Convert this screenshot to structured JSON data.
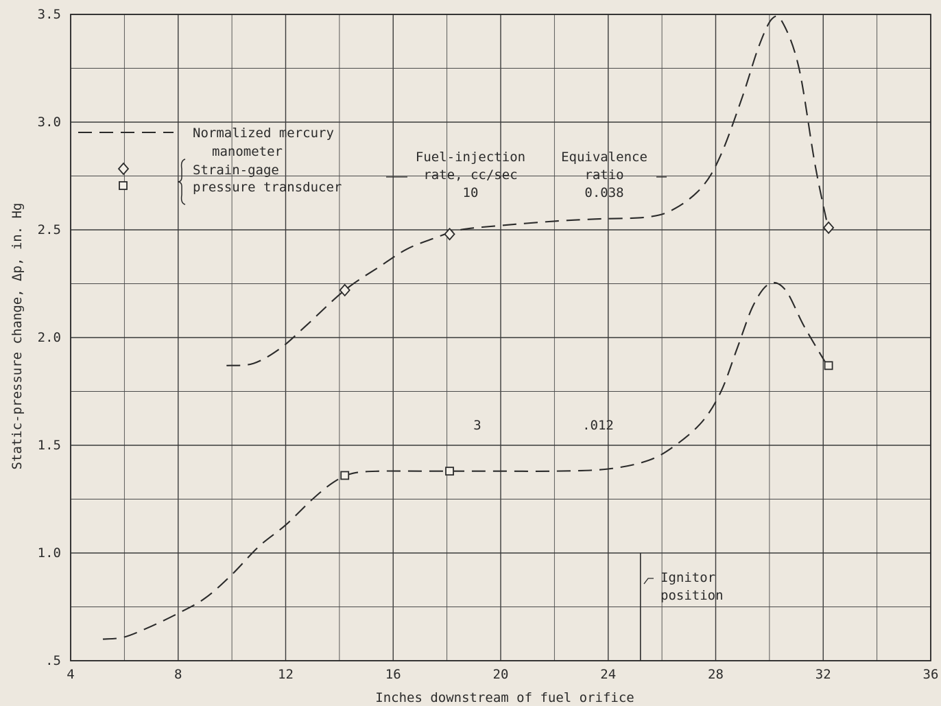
{
  "chart_data": {
    "type": "line",
    "xlabel": "Inches downstream of fuel orifice",
    "ylabel": "Static-pressure change, Δp, in. Hg",
    "xlim": [
      4,
      36
    ],
    "ylim": [
      0.5,
      3.5
    ],
    "x_ticks": [
      {
        "value": 4,
        "label": "4"
      },
      {
        "value": 8,
        "label": "8"
      },
      {
        "value": 12,
        "label": "12"
      },
      {
        "value": 16,
        "label": "16"
      },
      {
        "value": 20,
        "label": "20"
      },
      {
        "value": 24,
        "label": "24"
      },
      {
        "value": 28,
        "label": "28"
      },
      {
        "value": 32,
        "label": "32"
      },
      {
        "value": 36,
        "label": "36"
      }
    ],
    "y_ticks": [
      {
        "value": 0.5,
        "label": ".5"
      },
      {
        "value": 1.0,
        "label": "1.0"
      },
      {
        "value": 1.5,
        "label": "1.5"
      },
      {
        "value": 2.0,
        "label": "2.0"
      },
      {
        "value": 2.5,
        "label": "2.5"
      },
      {
        "value": 3.0,
        "label": "3.0"
      },
      {
        "value": 3.5,
        "label": "3.5"
      }
    ],
    "grid": true,
    "legend": {
      "line_entry": [
        "Normalized mercury",
        "manometer"
      ],
      "marker_entry": [
        "Strain-gage",
        "pressure transducer"
      ]
    },
    "column_headers": {
      "rate": [
        "Fuel-injection",
        "rate, cc/sec"
      ],
      "ratio": [
        "Equivalence",
        "ratio"
      ]
    },
    "series": [
      {
        "rate": "10",
        "equivalence_ratio": "0.038",
        "curve": [
          [
            9.8,
            1.87
          ],
          [
            10.8,
            1.88
          ],
          [
            11.8,
            1.95
          ],
          [
            12.8,
            2.06
          ],
          [
            14.2,
            2.22
          ],
          [
            15.5,
            2.33
          ],
          [
            16.5,
            2.41
          ],
          [
            17.5,
            2.46
          ],
          [
            18.5,
            2.5
          ],
          [
            20,
            2.52
          ],
          [
            22,
            2.54
          ],
          [
            23.5,
            2.55
          ],
          [
            25.5,
            2.56
          ],
          [
            26.5,
            2.6
          ],
          [
            27.5,
            2.7
          ],
          [
            28.2,
            2.85
          ],
          [
            29,
            3.12
          ],
          [
            29.6,
            3.35
          ],
          [
            30.1,
            3.48
          ],
          [
            30.5,
            3.46
          ],
          [
            31.1,
            3.25
          ],
          [
            31.7,
            2.8
          ],
          [
            32.2,
            2.5
          ]
        ],
        "transducer_points": [
          [
            14.2,
            2.22
          ],
          [
            18.1,
            2.48
          ],
          [
            32.2,
            2.51
          ]
        ]
      },
      {
        "rate": "3",
        "equivalence_ratio": ".012",
        "curve": [
          [
            5.2,
            0.6
          ],
          [
            6,
            0.61
          ],
          [
            7,
            0.66
          ],
          [
            8,
            0.72
          ],
          [
            9,
            0.79
          ],
          [
            10,
            0.9
          ],
          [
            11,
            1.03
          ],
          [
            12,
            1.13
          ],
          [
            13,
            1.25
          ],
          [
            13.8,
            1.33
          ],
          [
            14.5,
            1.37
          ],
          [
            15.5,
            1.38
          ],
          [
            17,
            1.38
          ],
          [
            18.5,
            1.38
          ],
          [
            20,
            1.38
          ],
          [
            22,
            1.38
          ],
          [
            24,
            1.39
          ],
          [
            25.5,
            1.43
          ],
          [
            26.5,
            1.5
          ],
          [
            27.5,
            1.61
          ],
          [
            28.2,
            1.75
          ],
          [
            28.8,
            1.95
          ],
          [
            29.4,
            2.15
          ],
          [
            30,
            2.25
          ],
          [
            30.6,
            2.22
          ],
          [
            31.3,
            2.05
          ],
          [
            32.2,
            1.86
          ]
        ],
        "transducer_points": [
          [
            14.2,
            1.36
          ],
          [
            18.1,
            1.38
          ],
          [
            32.2,
            1.87
          ]
        ]
      }
    ],
    "annotations": {
      "ignitor_x": 25.2,
      "ignitor_label": [
        "Ignitor",
        "position"
      ]
    }
  }
}
